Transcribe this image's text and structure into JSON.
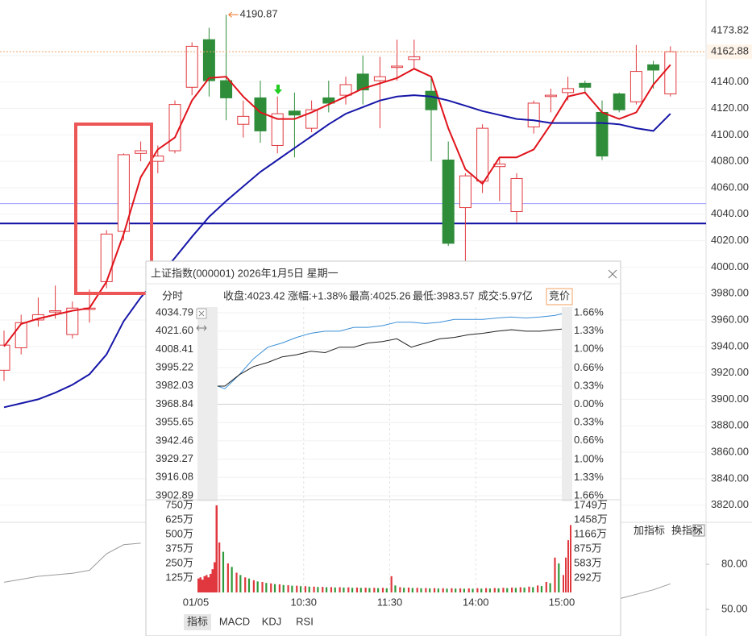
{
  "main_chart": {
    "type": "candlestick",
    "open": [
      3922,
      3939,
      3960,
      3966,
      3949,
      3968,
      3989,
      4027,
      4086,
      4080,
      4088,
      4136,
      4172,
      4141,
      4108,
      4128,
      4092,
      4118,
      4105,
      4128,
      4130,
      4146,
      4141,
      4151,
      4157,
      4133,
      4081,
      4045,
      4065,
      4076,
      4042,
      4106,
      4129,
      4132,
      4139,
      4117,
      4131,
      4125,
      4153,
      4131
    ],
    "close": [
      3941,
      3958,
      3964,
      3967,
      3969,
      3969,
      4025,
      4085,
      4088,
      4084,
      4123,
      4167,
      4141,
      4128,
      4114,
      4103,
      4116,
      4115,
      4119,
      4124,
      4138,
      4134,
      4144,
      4152,
      4159,
      4119,
      4018,
      4069,
      4105,
      4078,
      4067,
      4124,
      4130,
      4135,
      4136,
      4084,
      4119,
      4148,
      4149,
      4162.88
    ],
    "high": [
      3952,
      3964,
      3977,
      3986,
      3974,
      3983,
      4028,
      4086,
      4095,
      4092,
      4126,
      4170,
      4181,
      4190.87,
      4126,
      4141,
      4129,
      4132,
      4126,
      4141,
      4144,
      4160,
      4159,
      4172,
      4172,
      4144,
      4095,
      4071,
      4108,
      4083,
      4071,
      4126,
      4135,
      4144,
      4141,
      4126,
      4132,
      4168,
      4156,
      4167
    ],
    "low": [
      3914,
      3934,
      3955,
      3961,
      3946,
      3958,
      3984,
      4020,
      4080,
      4071,
      4086,
      4130,
      4129,
      4111,
      4098,
      4094,
      4086,
      4083,
      4102,
      4117,
      4123,
      4123,
      4105,
      4141,
      4150,
      4080,
      4016,
      4004,
      4056,
      4050,
      4034,
      4101,
      4117,
      4126,
      4132,
      4081,
      4117,
      4123,
      4135,
      4129
    ],
    "up_color": "#e0383e",
    "down_color": "#2f8d3a",
    "ma": [
      {
        "color": "#e0141c",
        "values": [
          3940,
          3957,
          3961,
          3964,
          3967,
          3969,
          3989,
          4025,
          4068,
          4089,
          4098,
          4126,
          4143,
          4144,
          4129,
          4117,
          4112,
          4112,
          4117,
          4123,
          4129,
          4135,
          4139,
          4143,
          4150,
          4144,
          4105,
          4074,
          4063,
          4083,
          4083,
          4089,
          4108,
          4129,
          4132,
          4117,
          4112,
          4117,
          4138,
          4153
        ]
      },
      {
        "color": "#1616a8",
        "values": [
          3894,
          3897,
          3900,
          3905,
          3911,
          3919,
          3934,
          3959,
          3977,
          3992,
          4007,
          4023,
          4038,
          4050,
          4061,
          4072,
          4081,
          4090,
          4099,
          4108,
          4116,
          4121,
          4126,
          4129,
          4130,
          4129,
          4126,
          4122,
          4118,
          4115,
          4112,
          4111,
          4109,
          4109,
          4109,
          4109,
          4108,
          4105,
          4103,
          4116
        ]
      }
    ],
    "hlines": [
      {
        "value": 4048,
        "color": "#9b9bff"
      },
      {
        "value": 4033,
        "color": "#0c0ca0"
      }
    ],
    "ylim": [
      3807,
      4202
    ],
    "yticks": [
      {
        "value": 3820,
        "label": "3820.00"
      },
      {
        "value": 3840,
        "label": "3840.00"
      },
      {
        "value": 3860,
        "label": "3860.00"
      },
      {
        "value": 3880,
        "label": "3880.00"
      },
      {
        "value": 3900,
        "label": "3900.00"
      },
      {
        "value": 3920,
        "label": "3920.00"
      },
      {
        "value": 3940,
        "label": "3940.00"
      },
      {
        "value": 3960,
        "label": "3960.00"
      },
      {
        "value": 3980,
        "label": "3980.00"
      },
      {
        "value": 4000,
        "label": "4000.00"
      },
      {
        "value": 4020,
        "label": "4020.00"
      },
      {
        "value": 4040,
        "label": "4040.00"
      },
      {
        "value": 4060,
        "label": "4060.00"
      },
      {
        "value": 4080,
        "label": "4080.00"
      },
      {
        "value": 4100,
        "label": "4100.00"
      },
      {
        "value": 4120,
        "label": "4120.00"
      },
      {
        "value": 4140,
        "label": "4140.00"
      },
      {
        "value": 4160,
        "label": "4160.00"
      }
    ],
    "top_label": 4173.82,
    "last_price": 4162.88,
    "high_annotation": 4190.87
  },
  "indicator": {
    "color": "#9a9a9a",
    "values": [
      68,
      70,
      72,
      73,
      74,
      76,
      87,
      93,
      94,
      null,
      null,
      null,
      null,
      null,
      null,
      null,
      null,
      null,
      null,
      null,
      null,
      null,
      null,
      null,
      null,
      null,
      null,
      null,
      null,
      null,
      null,
      null,
      null,
      null,
      null,
      null,
      57,
      60,
      63,
      67
    ],
    "ylim": [
      32.3,
      107.9
    ],
    "yticks": [
      {
        "value": 80,
        "label": "80.00"
      },
      {
        "value": 50,
        "label": "50.00"
      }
    ],
    "buttons": [
      "加指标",
      "换指标"
    ]
  },
  "popup": {
    "title": "上证指数(000001) 2026年1月5日 星期一",
    "mode": "分时",
    "info": [
      {
        "label": "收盘:",
        "value": "4023.42"
      },
      {
        "label": "涨幅:",
        "value": "+1.38%"
      },
      {
        "label": "最高:",
        "value": "4025.26"
      },
      {
        "label": "最低:",
        "value": "3983.57"
      },
      {
        "label": "成交:",
        "value": "5.97亿"
      }
    ],
    "button": "竞价",
    "ylim": [
      3902.89,
      4034.79
    ],
    "price_ticks": [
      4034.79,
      {
        "value": 4021.6,
        "label": "4021.60"
      },
      4008.41,
      3995.22,
      3982.03,
      3968.84,
      3955.65,
      3942.46,
      3929.27,
      3916.08,
      3902.89
    ],
    "pct_lim": [
      -1.66,
      1.66
    ],
    "pct_ticks": [
      {
        "value": 1.66,
        "label": "1.66%"
      },
      {
        "value": 1.33,
        "label": "1.33%"
      },
      {
        "value": 1.0,
        "label": "1.00%"
      },
      {
        "value": 0.66,
        "label": "0.66%"
      },
      {
        "value": 0.33,
        "label": "0.33%"
      },
      {
        "value": 0,
        "label": "0.00%"
      },
      {
        "value": -0.33,
        "label": "0.33%"
      },
      {
        "value": -0.66,
        "label": "0.66%"
      },
      {
        "value": -1.0,
        "label": "1.00%"
      },
      {
        "value": -1.33,
        "label": "1.33%"
      },
      {
        "value": -1.66,
        "label": "1.66%"
      }
    ],
    "xlim": [
      0,
      240
    ],
    "date": "01/05",
    "xticks": [
      {
        "value": 60,
        "label": "10:30"
      },
      {
        "value": 120,
        "label": "11:30"
      },
      {
        "value": 180,
        "label": "14:00"
      },
      {
        "value": 240,
        "label": "15:00"
      }
    ],
    "minutes": [
      0,
      5,
      15,
      25,
      35,
      45,
      55,
      65,
      75,
      85,
      95,
      105,
      115,
      125,
      135,
      145,
      155,
      165,
      175,
      185,
      195,
      205,
      215,
      225,
      235,
      240
    ],
    "price_line": {
      "color": "#222222",
      "values": [
        3981.9,
        3981.9,
        3990,
        3996,
        3999,
        4003,
        4004.5,
        4007,
        4006,
        4010,
        4010,
        4013,
        4014,
        4016,
        4010,
        4013,
        4016,
        4017,
        4019,
        4020,
        4021.5,
        4022.6,
        4021.5,
        4021.5,
        4022.6,
        4023
      ]
    },
    "avg_line": {
      "color": "#3a8fd8",
      "values": [
        3982,
        3980,
        3990,
        4001.6,
        4010,
        4013,
        4017,
        4020,
        4021.5,
        4021.5,
        4024.3,
        4024.3,
        4025.5,
        4028,
        4028,
        4027,
        4028,
        4030,
        4030,
        4030,
        4031,
        4031.7,
        4031,
        4031.7,
        4032.8,
        4034
      ]
    },
    "volume": {
      "ylim": [
        0,
        784
      ],
      "y2lim": [
        0,
        1830
      ],
      "up_color": "#e0383e",
      "down_color": "#2f9a3a",
      "yticks": [
        {
          "value": 750,
          "label": "750万"
        },
        {
          "value": 625,
          "label": "625万"
        },
        {
          "value": 500,
          "label": "500万"
        },
        {
          "value": 375,
          "label": "375万"
        },
        {
          "value": 250,
          "label": "250万"
        },
        {
          "value": 125,
          "label": "125万"
        }
      ],
      "y2ticks": [
        {
          "value": 1749,
          "label": "1749万"
        },
        {
          "value": 1458,
          "label": "1458万"
        },
        {
          "value": 1166,
          "label": "1166万"
        },
        {
          "value": 875,
          "label": "875万"
        },
        {
          "value": 583,
          "label": "583万"
        },
        {
          "value": 292,
          "label": "292万"
        }
      ],
      "up": [
        430,
        250,
        170,
        130,
        105,
        90,
        78,
        70,
        62,
        58,
        54,
        50,
        48,
        46,
        45,
        44,
        42,
        41,
        40,
        40,
        140,
        45,
        42,
        40,
        38,
        37,
        36,
        36,
        35,
        35,
        36,
        37,
        38,
        40,
        42,
        45,
        50,
        60,
        90,
        300
      ],
      "down": [
        350,
        220,
        150,
        120,
        95,
        82,
        72,
        64,
        58,
        54,
        50,
        47,
        45,
        43,
        42,
        40,
        39,
        38,
        37,
        36,
        60,
        40,
        38,
        36,
        35,
        34,
        33,
        33,
        32,
        32,
        33,
        34,
        35,
        37,
        39,
        42,
        46,
        55,
        80,
        250
      ],
      "open_auction": [
        120,
        130,
        110,
        140,
        150,
        130,
        160,
        200,
        260,
        750
      ],
      "close_auction": [
        150,
        300,
        450,
        580
      ]
    },
    "tabs": [
      "指标",
      "MACD",
      "KDJ",
      "RSI"
    ]
  }
}
